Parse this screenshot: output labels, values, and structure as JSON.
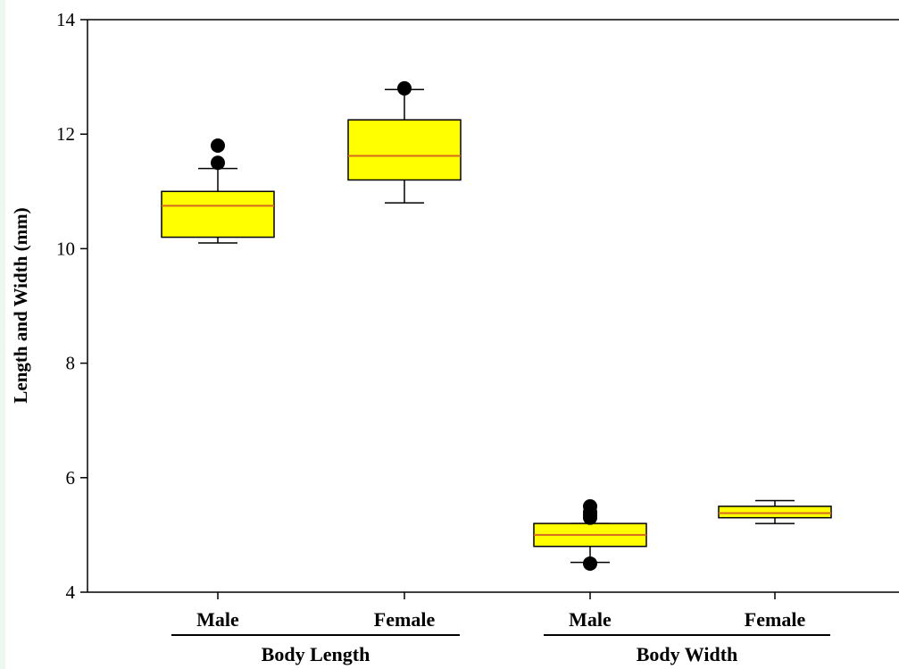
{
  "chart_data": {
    "type": "boxplot",
    "ylabel": "Length and Width (mm)",
    "ylim": [
      4,
      14
    ],
    "yticks": [
      4,
      6,
      8,
      10,
      12,
      14
    ],
    "groups": [
      {
        "label": "Body Length",
        "categories": [
          "Male",
          "Female"
        ]
      },
      {
        "label": "Body Width",
        "categories": [
          "Male",
          "Female"
        ]
      }
    ],
    "boxes": [
      {
        "group": "Body Length",
        "category": "Male",
        "whisker_low": 10.1,
        "q1": 10.2,
        "median": 10.75,
        "q3": 11.0,
        "whisker_high": 11.4,
        "outliers": [
          11.5,
          11.8
        ]
      },
      {
        "group": "Body Length",
        "category": "Female",
        "whisker_low": 10.8,
        "q1": 11.2,
        "median": 11.62,
        "q3": 12.25,
        "whisker_high": 12.78,
        "outliers": [
          12.8
        ]
      },
      {
        "group": "Body Width",
        "category": "Male",
        "whisker_low": 4.52,
        "q1": 4.8,
        "median": 5.0,
        "q3": 5.2,
        "whisker_high": 5.2,
        "outliers": [
          4.5,
          5.3,
          5.35,
          5.4,
          5.5
        ]
      },
      {
        "group": "Body Width",
        "category": "Female",
        "whisker_low": 5.2,
        "q1": 5.3,
        "median": 5.38,
        "q3": 5.5,
        "whisker_high": 5.6,
        "outliers": []
      }
    ],
    "colors": {
      "box_fill": "#ffff00",
      "median_line": "#d2691e",
      "outline": "#000000"
    },
    "grid": false
  }
}
